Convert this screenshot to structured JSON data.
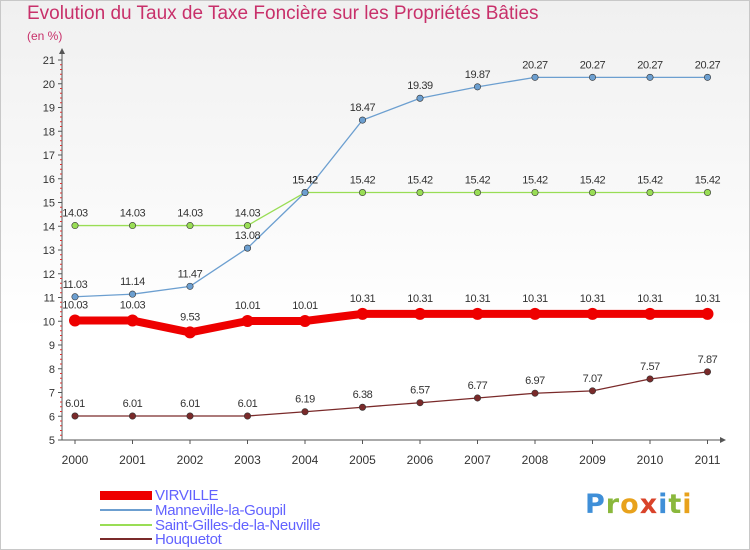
{
  "title": "Evolution du Taux de Taxe Foncière sur les Propriétés Bâties",
  "unit_label": "(en %)",
  "logo": {
    "letters": [
      "P",
      "r",
      "o",
      "x",
      "i",
      "t",
      "i"
    ],
    "colors": [
      "#3f8fd8",
      "#8ab83c",
      "#e8a21c",
      "#d9432a",
      "#3f8fd8",
      "#8ab83c",
      "#e8a21c"
    ]
  },
  "chart_data": {
    "type": "line",
    "x": [
      "2000",
      "2001",
      "2002",
      "2003",
      "2004",
      "2005",
      "2006",
      "2007",
      "2008",
      "2009",
      "2010",
      "2011"
    ],
    "ylim": [
      5,
      21
    ],
    "yticks": [
      "5",
      "6",
      "7",
      "8",
      "9",
      "10",
      "11",
      "12",
      "13",
      "14",
      "15",
      "16",
      "17",
      "18",
      "19",
      "20",
      "21"
    ],
    "series": [
      {
        "name": "VIRVILLE",
        "color": "#ee0000",
        "values": [
          10.03,
          10.03,
          9.53,
          10.01,
          10.01,
          10.31,
          10.31,
          10.31,
          10.31,
          10.31,
          10.31,
          10.31
        ],
        "labels": [
          "10.03",
          "10.03",
          "9.53",
          "10.01",
          "10.01",
          "10.31",
          "10.31",
          "10.31",
          "10.31",
          "10.31",
          "10.31",
          "10.31"
        ]
      },
      {
        "name": "Manneville-la-Goupil",
        "color": "#6c9fd0",
        "values": [
          11.03,
          11.14,
          11.47,
          13.08,
          15.42,
          18.47,
          19.39,
          19.87,
          20.27,
          20.27,
          20.27,
          20.27
        ],
        "labels": [
          "11.03",
          "11.14",
          "11.47",
          "13.08",
          "15.42",
          "18.47",
          "19.39",
          "19.87",
          "20.27",
          "20.27",
          "20.27",
          "20.27"
        ]
      },
      {
        "name": "Saint-Gilles-de-la-Neuville",
        "color": "#99dd55",
        "values": [
          14.03,
          14.03,
          14.03,
          14.03,
          15.42,
          15.42,
          15.42,
          15.42,
          15.42,
          15.42,
          15.42,
          15.42
        ],
        "labels": [
          "14.03",
          "14.03",
          "14.03",
          "14.03",
          "15.42",
          "15.42",
          "15.42",
          "15.42",
          "15.42",
          "15.42",
          "15.42",
          "15.42"
        ]
      },
      {
        "name": "Houquetot",
        "color": "#7a2a2a",
        "values": [
          6.01,
          6.01,
          6.01,
          6.01,
          6.19,
          6.38,
          6.57,
          6.77,
          6.97,
          7.07,
          7.57,
          7.87
        ],
        "labels": [
          "6.01",
          "6.01",
          "6.01",
          "6.01",
          "6.19",
          "6.38",
          "6.57",
          "6.77",
          "6.97",
          "7.07",
          "7.57",
          "7.87"
        ]
      }
    ]
  }
}
